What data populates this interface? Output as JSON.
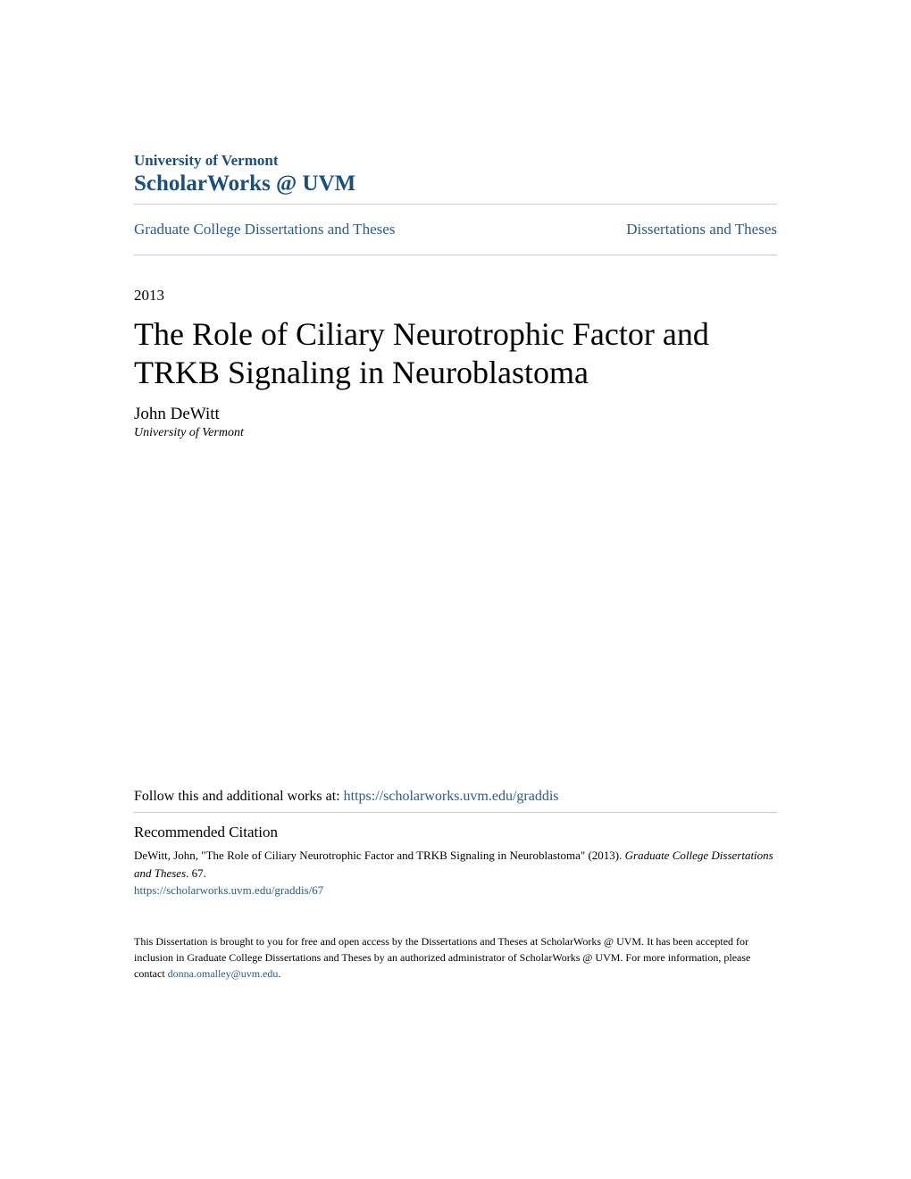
{
  "header": {
    "institution": "University of Vermont",
    "repository": "ScholarWorks @ UVM"
  },
  "breadcrumb": {
    "left": "Graduate College Dissertations and Theses",
    "right": "Dissertations and Theses"
  },
  "paper": {
    "year": "2013",
    "title": "The Role of Ciliary Neurotrophic Factor and TRKB Signaling in Neuroblastoma",
    "author": "John DeWitt",
    "affiliation": "University of Vermont"
  },
  "follow": {
    "text": "Follow this and additional works at: ",
    "url": "https://scholarworks.uvm.edu/graddis"
  },
  "citation": {
    "heading": "Recommended Citation",
    "text_part1": "DeWitt, John, \"The Role of Ciliary Neurotrophic Factor and TRKB Signaling in Neuroblastoma\" (2013). ",
    "text_italic": "Graduate College Dissertations and Theses",
    "text_part2": ". 67.",
    "link": "https://scholarworks.uvm.edu/graddis/67"
  },
  "footer": {
    "text_part1": "This Dissertation is brought to you for free and open access by the Dissertations and Theses at ScholarWorks @ UVM. It has been accepted for inclusion in Graduate College Dissertations and Theses by an authorized administrator of ScholarWorks @ UVM. For more information, please contact ",
    "email": "donna.omalley@uvm.edu",
    "text_part2": "."
  },
  "colors": {
    "link_color": "#2a5c8a",
    "header_color": "#1d4f7a",
    "text_color": "#000000",
    "divider_color": "#cccccc",
    "background": "#ffffff"
  },
  "typography": {
    "title_fontsize": 36,
    "body_fontsize": 16,
    "small_fontsize": 13,
    "footer_fontsize": 12,
    "font_family": "Georgia, serif"
  }
}
